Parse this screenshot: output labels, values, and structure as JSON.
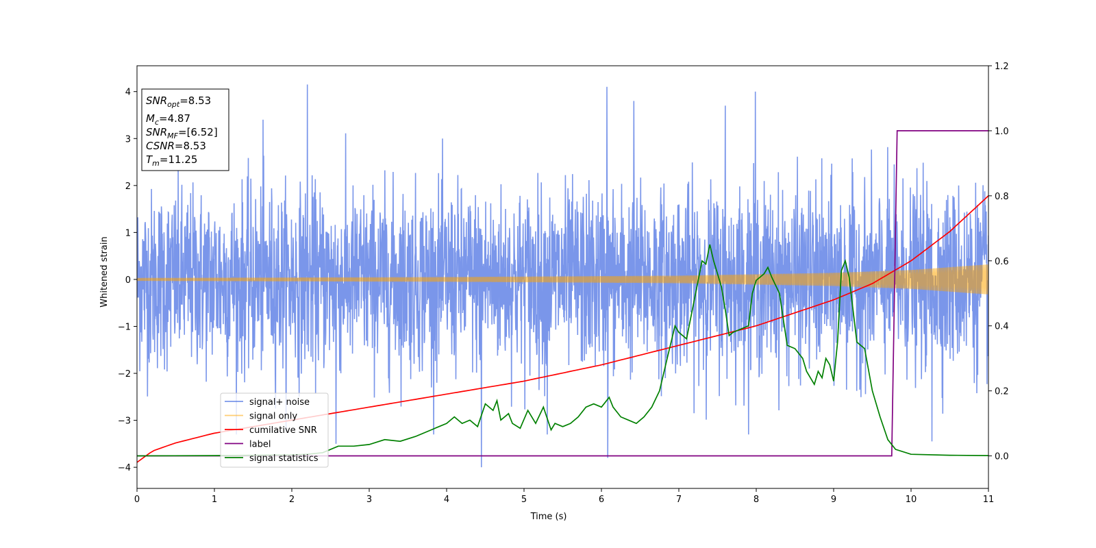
{
  "chart_data": {
    "type": "line",
    "title": "",
    "xlabel": "Time (s)",
    "ylabel": "Whitened strain",
    "xlim": [
      0,
      11
    ],
    "ylim": [
      -4.45,
      4.55
    ],
    "y2lim": [
      -0.1,
      1.2
    ],
    "xticks": [
      "0",
      "1",
      "2",
      "3",
      "4",
      "5",
      "6",
      "7",
      "8",
      "9",
      "10",
      "11"
    ],
    "yticks": [
      "−4",
      "−3",
      "−2",
      "−1",
      "0",
      "1",
      "2",
      "3",
      "4"
    ],
    "y2ticks": [
      "0.0",
      "0.2",
      "0.4",
      "0.6",
      "0.8",
      "1.0",
      "1.2"
    ],
    "grid": false,
    "legend_position": "lower-left",
    "info_box": {
      "position": "top-left",
      "lines": [
        {
          "main": "SNR",
          "sub": "opt",
          "value": "=8.53"
        },
        {
          "main": "M",
          "sub": "c",
          "value": "=4.87"
        },
        {
          "main": "SNR",
          "sub": "MF",
          "value": "=[6.52]"
        },
        {
          "main": "CSNR",
          "sub": "",
          "value": "=8.53"
        },
        {
          "main": "T",
          "sub": "m",
          "value": "=11.25"
        }
      ]
    },
    "series": [
      {
        "name": "signal+ noise",
        "color": "#4169e1",
        "axis": "left",
        "kind": "noise",
        "typical_range": [
          -2.5,
          2.5
        ],
        "spike_peaks": [
          {
            "x": 2.2,
            "y": 4.15
          },
          {
            "x": 6.07,
            "y": 4.1
          },
          {
            "x": 7.99,
            "y": 4.0
          },
          {
            "x": 1.63,
            "y": 3.4
          },
          {
            "x": 6.42,
            "y": 3.8
          },
          {
            "x": 7.6,
            "y": 3.7
          },
          {
            "x": 4.45,
            "y": -4.0
          },
          {
            "x": 6.08,
            "y": -3.8
          },
          {
            "x": 2.57,
            "y": -3.5
          },
          {
            "x": 10.27,
            "y": -3.45
          },
          {
            "x": 5.3,
            "y": -3.3
          }
        ]
      },
      {
        "name": "signal only",
        "color": "#ffa500",
        "axis": "left",
        "kind": "chirp",
        "amplitude": [
          {
            "x": 0,
            "y": 0.03
          },
          {
            "x": 4,
            "y": 0.05
          },
          {
            "x": 7,
            "y": 0.08
          },
          {
            "x": 9,
            "y": 0.14
          },
          {
            "x": 10,
            "y": 0.2
          },
          {
            "x": 11,
            "y": 0.32
          }
        ]
      },
      {
        "name": "cumilative SNR",
        "color": "#ff0000",
        "axis": "right",
        "x": [
          0,
          0.2,
          0.5,
          1,
          2,
          3,
          4,
          5,
          6,
          7,
          8,
          9,
          9.5,
          10,
          10.5,
          11
        ],
        "y": [
          -0.02,
          0.015,
          0.04,
          0.07,
          0.11,
          0.15,
          0.19,
          0.23,
          0.28,
          0.34,
          0.4,
          0.48,
          0.53,
          0.6,
          0.69,
          0.8
        ]
      },
      {
        "name": "label",
        "color": "#800080",
        "axis": "right",
        "x": [
          0,
          9.75,
          9.82,
          11
        ],
        "y": [
          0,
          0,
          1.0,
          1.0
        ]
      },
      {
        "name": "signal statistics",
        "color": "#008000",
        "axis": "right",
        "x": [
          0,
          1,
          2,
          2.2,
          2.4,
          2.6,
          2.8,
          3.0,
          3.2,
          3.4,
          3.6,
          3.8,
          3.9,
          4.0,
          4.1,
          4.2,
          4.3,
          4.4,
          4.5,
          4.6,
          4.65,
          4.7,
          4.8,
          4.85,
          4.95,
          5.05,
          5.15,
          5.25,
          5.35,
          5.4,
          5.5,
          5.6,
          5.7,
          5.8,
          5.9,
          6.0,
          6.1,
          6.15,
          6.25,
          6.35,
          6.45,
          6.55,
          6.65,
          6.75,
          6.85,
          6.95,
          7.0,
          7.1,
          7.2,
          7.3,
          7.35,
          7.4,
          7.45,
          7.55,
          7.6,
          7.65,
          7.7,
          7.8,
          7.9,
          7.95,
          8.0,
          8.05,
          8.1,
          8.15,
          8.2,
          8.3,
          8.4,
          8.5,
          8.6,
          8.65,
          8.7,
          8.75,
          8.8,
          8.85,
          8.9,
          8.95,
          9.0,
          9.05,
          9.1,
          9.15,
          9.2,
          9.3,
          9.4,
          9.5,
          9.6,
          9.7,
          9.8,
          10.0,
          10.5,
          11.0
        ],
        "y": [
          0.0,
          0.001,
          0.003,
          0.005,
          0.01,
          0.03,
          0.03,
          0.035,
          0.05,
          0.045,
          0.06,
          0.08,
          0.09,
          0.1,
          0.12,
          0.1,
          0.11,
          0.09,
          0.16,
          0.14,
          0.17,
          0.11,
          0.13,
          0.1,
          0.085,
          0.14,
          0.1,
          0.15,
          0.08,
          0.1,
          0.09,
          0.1,
          0.12,
          0.15,
          0.16,
          0.15,
          0.18,
          0.15,
          0.12,
          0.11,
          0.1,
          0.12,
          0.15,
          0.2,
          0.3,
          0.4,
          0.38,
          0.36,
          0.48,
          0.6,
          0.59,
          0.65,
          0.6,
          0.52,
          0.45,
          0.37,
          0.38,
          0.39,
          0.4,
          0.5,
          0.54,
          0.55,
          0.56,
          0.58,
          0.55,
          0.5,
          0.34,
          0.33,
          0.3,
          0.26,
          0.24,
          0.22,
          0.26,
          0.24,
          0.3,
          0.28,
          0.23,
          0.35,
          0.57,
          0.6,
          0.55,
          0.35,
          0.33,
          0.2,
          0.12,
          0.05,
          0.02,
          0.005,
          0.002,
          0.001
        ]
      }
    ]
  }
}
